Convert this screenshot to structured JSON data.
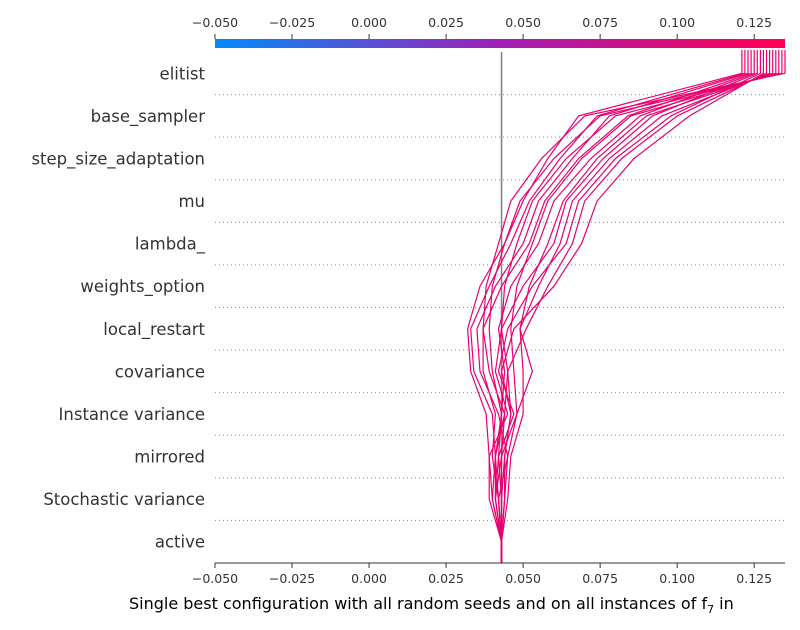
{
  "chart_data": {
    "type": "line",
    "subtype": "decision-plot",
    "title": "",
    "xlabel": "Single best configuration with all random seeds and on all instances of f",
    "xlabel_subscript": "7",
    "xlabel_suffix": " in",
    "xlim": [
      -0.05,
      0.135
    ],
    "xticks": [
      "−0.050",
      "−0.025",
      "0.000",
      "0.025",
      "0.050",
      "0.075",
      "0.100",
      "0.125"
    ],
    "xtick_values": [
      -0.05,
      -0.025,
      0.0,
      0.025,
      0.05,
      0.075,
      0.1,
      0.125
    ],
    "base_value": 0.043,
    "colorbar": {
      "min": -0.05,
      "max": 0.135,
      "color_low": "#008bfb",
      "color_high": "#ff0051"
    },
    "line_color": "#e8006e",
    "features_top_to_bottom": [
      "elitist",
      "base_sampler",
      "step_size_adaptation",
      "mu",
      "lambda_",
      "weights_option",
      "local_restart",
      "covariance",
      "Instance variance",
      "mirrored",
      "Stochastic variance",
      "active"
    ],
    "series": [
      {
        "values": [
          0.135,
          0.07,
          0.056,
          0.046,
          0.042,
          0.038,
          0.037,
          0.037,
          0.041,
          0.04,
          0.042,
          0.043
        ]
      },
      {
        "values": [
          0.134,
          0.075,
          0.06,
          0.049,
          0.044,
          0.04,
          0.039,
          0.04,
          0.043,
          0.042,
          0.043,
          0.043
        ]
      },
      {
        "values": [
          0.133,
          0.08,
          0.064,
          0.053,
          0.048,
          0.044,
          0.043,
          0.045,
          0.046,
          0.044,
          0.044,
          0.043
        ]
      },
      {
        "values": [
          0.132,
          0.085,
          0.069,
          0.058,
          0.053,
          0.048,
          0.046,
          0.047,
          0.048,
          0.045,
          0.044,
          0.043
        ]
      },
      {
        "values": [
          0.131,
          0.09,
          0.074,
          0.063,
          0.058,
          0.052,
          0.049,
          0.05,
          0.05,
          0.046,
          0.045,
          0.043
        ]
      },
      {
        "values": [
          0.13,
          0.095,
          0.078,
          0.066,
          0.062,
          0.055,
          0.049,
          0.053,
          0.048,
          0.043,
          0.043,
          0.043
        ]
      },
      {
        "values": [
          0.129,
          0.1,
          0.082,
          0.07,
          0.066,
          0.058,
          0.051,
          0.045,
          0.044,
          0.041,
          0.042,
          0.043
        ]
      },
      {
        "values": [
          0.128,
          0.104,
          0.086,
          0.074,
          0.069,
          0.06,
          0.047,
          0.043,
          0.046,
          0.044,
          0.043,
          0.043
        ]
      },
      {
        "values": [
          0.127,
          0.098,
          0.08,
          0.068,
          0.064,
          0.053,
          0.045,
          0.042,
          0.047,
          0.042,
          0.041,
          0.043
        ]
      },
      {
        "values": [
          0.126,
          0.092,
          0.076,
          0.064,
          0.06,
          0.05,
          0.043,
          0.041,
          0.045,
          0.039,
          0.039,
          0.043
        ]
      },
      {
        "values": [
          0.125,
          0.088,
          0.072,
          0.06,
          0.055,
          0.046,
          0.042,
          0.044,
          0.043,
          0.041,
          0.04,
          0.043
        ]
      },
      {
        "values": [
          0.124,
          0.084,
          0.068,
          0.057,
          0.052,
          0.043,
          0.037,
          0.039,
          0.044,
          0.043,
          0.041,
          0.043
        ]
      },
      {
        "values": [
          0.123,
          0.078,
          0.066,
          0.055,
          0.05,
          0.041,
          0.035,
          0.036,
          0.042,
          0.045,
          0.042,
          0.043
        ]
      },
      {
        "values": [
          0.122,
          0.074,
          0.062,
          0.052,
          0.046,
          0.039,
          0.033,
          0.034,
          0.04,
          0.041,
          0.041,
          0.043
        ]
      },
      {
        "values": [
          0.121,
          0.068,
          0.058,
          0.05,
          0.044,
          0.036,
          0.032,
          0.033,
          0.038,
          0.039,
          0.04,
          0.043
        ]
      }
    ]
  }
}
